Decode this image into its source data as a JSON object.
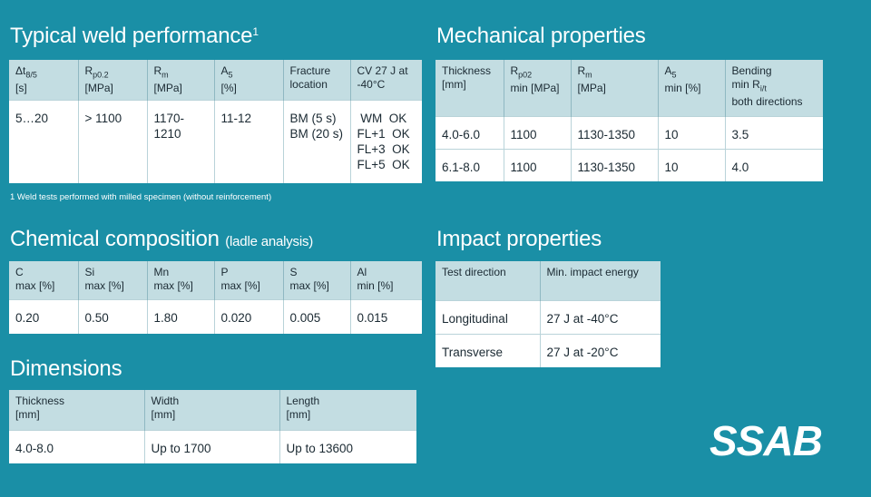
{
  "weld": {
    "title": "Typical weld performance",
    "title_sup": "1",
    "headers": [
      {
        "main": "Δt",
        "sub": "8/5",
        "rest": "\n[s]"
      },
      {
        "main": "R",
        "sub": "p0.2",
        "rest": "\n[MPa]"
      },
      {
        "main": "R",
        "sub": "m",
        "rest": "\n[MPa]"
      },
      {
        "main": "A",
        "sub": "5",
        "rest": "\n[%]"
      },
      {
        "main": "Fracture\nlocation",
        "sub": "",
        "rest": ""
      },
      {
        "main": "CV 27 J at\n-40°C",
        "sub": "",
        "rest": ""
      }
    ],
    "row": [
      "5…20",
      "> 1100",
      "1170-\n1210",
      "11-12",
      "BM (5 s)\nBM (20 s)",
      " WM  OK\nFL+1  OK\nFL+3  OK\nFL+5  OK"
    ],
    "footnote": "1 Weld tests performed with milled specimen (without reinforcement)"
  },
  "mechanical": {
    "title": "Mechanical properties",
    "headers": [
      {
        "main": "Thickness\n[mm]",
        "sub": "",
        "rest": ""
      },
      {
        "main": "R",
        "sub": "p02",
        "rest": "\nmin [MPa]"
      },
      {
        "main": "R",
        "sub": "m",
        "rest": "\n[MPa]"
      },
      {
        "main": "A",
        "sub": "5",
        "rest": "\nmin [%]"
      },
      {
        "main": "Bending\nmin R",
        "sub": "i/t",
        "rest": "\nboth directions"
      }
    ],
    "rows": [
      [
        "4.0-6.0",
        "1100",
        "1130-1350",
        "10",
        "3.5"
      ],
      [
        "6.1-8.0",
        "1100",
        "1130-1350",
        "10",
        "4.0"
      ]
    ]
  },
  "chemical": {
    "title": "Chemical composition",
    "title_note": "(ladle analysis)",
    "headers": [
      "C\nmax [%]",
      "Si\nmax [%]",
      "Mn\nmax [%]",
      "P\nmax [%]",
      "S\nmax [%]",
      "Al\nmin [%]"
    ],
    "row": [
      "0.20",
      "0.50",
      "1.80",
      "0.020",
      "0.005",
      "0.015"
    ]
  },
  "impact": {
    "title": "Impact properties",
    "headers": [
      "Test direction",
      "Min. impact energy"
    ],
    "rows": [
      [
        "Longitudinal",
        "27 J at -40°C"
      ],
      [
        "Transverse",
        "27 J at -20°C"
      ]
    ]
  },
  "dimensions": {
    "title": "Dimensions",
    "headers": [
      "Thickness\n[mm]",
      "Width\n[mm]",
      "Length\n[mm]"
    ],
    "row": [
      "4.0-8.0",
      "Up to 1700",
      "Up to 13600"
    ]
  },
  "logo_text": "SSAB",
  "colors": {
    "background": "#1a8fa6",
    "header_cell": "#c3dde2",
    "cell": "#ffffff",
    "title_text": "#ffffff"
  }
}
